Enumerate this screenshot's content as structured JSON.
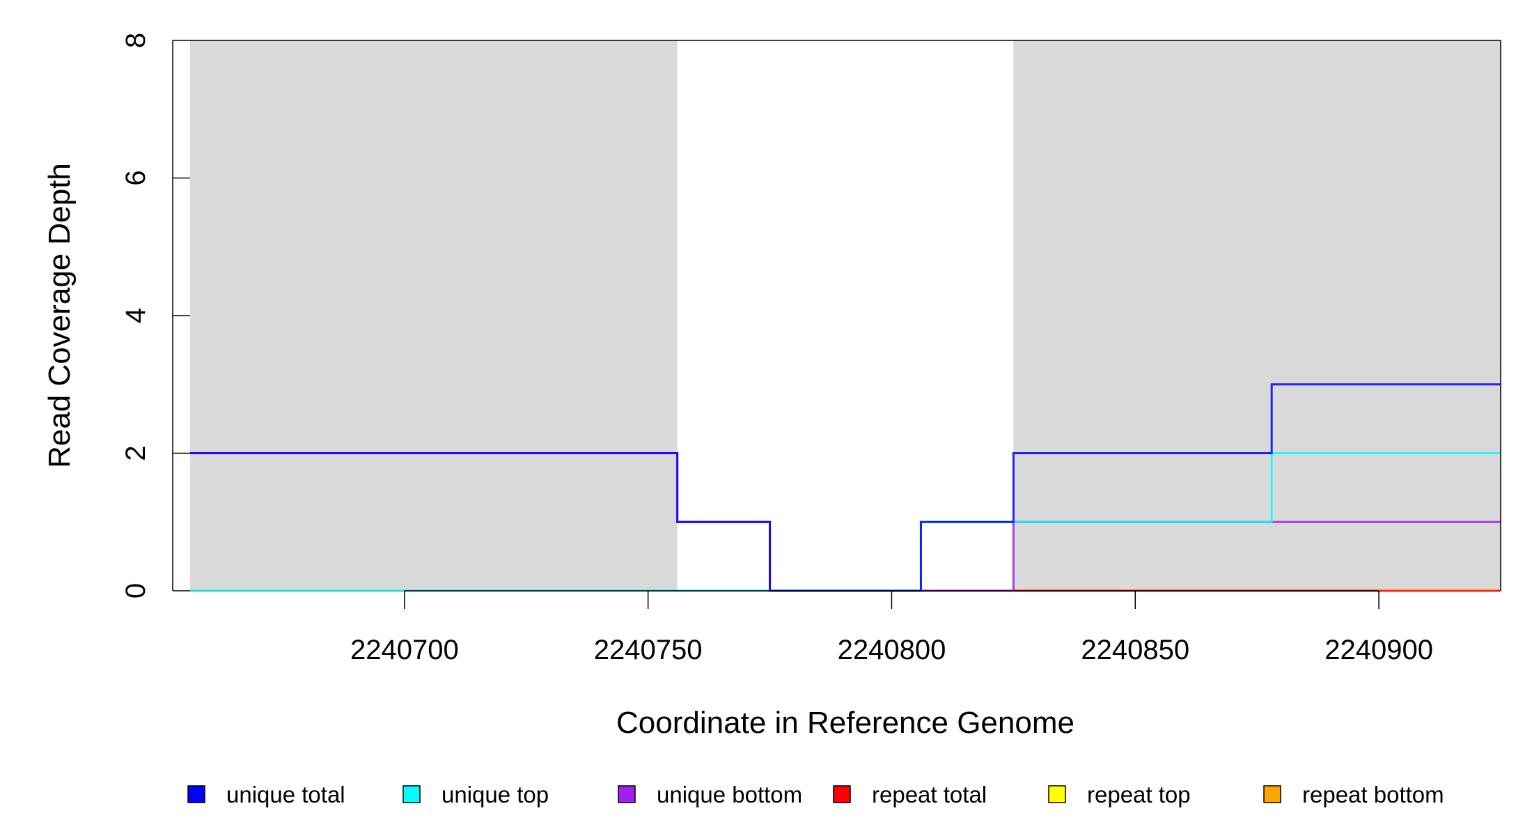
{
  "chart_data": {
    "type": "line",
    "title": "",
    "xlabel": "Coordinate in Reference Genome",
    "ylabel": "Read Coverage Depth",
    "xlim": [
      2240656,
      2240925
    ],
    "ylim": [
      0,
      8
    ],
    "x_ticks": [
      2240700,
      2240750,
      2240800,
      2240850,
      2240900
    ],
    "y_ticks": [
      0,
      2,
      4,
      6,
      8
    ],
    "shaded_regions": [
      {
        "x0": 2240656,
        "x1": 2240756,
        "color": "#d9d9d9"
      },
      {
        "x0": 2240825,
        "x1": 2240925,
        "color": "#d9d9d9"
      }
    ],
    "legend_position": "bottom",
    "series": [
      {
        "name": "unique total",
        "color": "#0000ff",
        "steps": [
          [
            2240656,
            2
          ],
          [
            2240756,
            1
          ],
          [
            2240775,
            0
          ],
          [
            2240806,
            1
          ],
          [
            2240825,
            2
          ],
          [
            2240878,
            3
          ]
        ],
        "x_end": 2240925
      },
      {
        "name": "unique top",
        "color": "#00ffff",
        "steps": [
          [
            2240656,
            0
          ],
          [
            2240806,
            1
          ],
          [
            2240878,
            2
          ]
        ],
        "x_end": 2240925
      },
      {
        "name": "unique bottom",
        "color": "#a020f0",
        "steps": [
          [
            2240656,
            2
          ],
          [
            2240756,
            1
          ],
          [
            2240775,
            0
          ],
          [
            2240825,
            1
          ]
        ],
        "x_end": 2240925
      },
      {
        "name": "repeat total",
        "color": "#ff0000",
        "steps": [
          [
            2240656,
            0
          ]
        ],
        "x_end": 2240925
      },
      {
        "name": "repeat top",
        "color": "#ffff00",
        "steps": [
          [
            2240656,
            0
          ]
        ],
        "x_end": 2240925
      },
      {
        "name": "repeat bottom",
        "color": "#ffa500",
        "steps": [
          [
            2240656,
            0
          ]
        ],
        "x_end": 2240925
      }
    ]
  }
}
